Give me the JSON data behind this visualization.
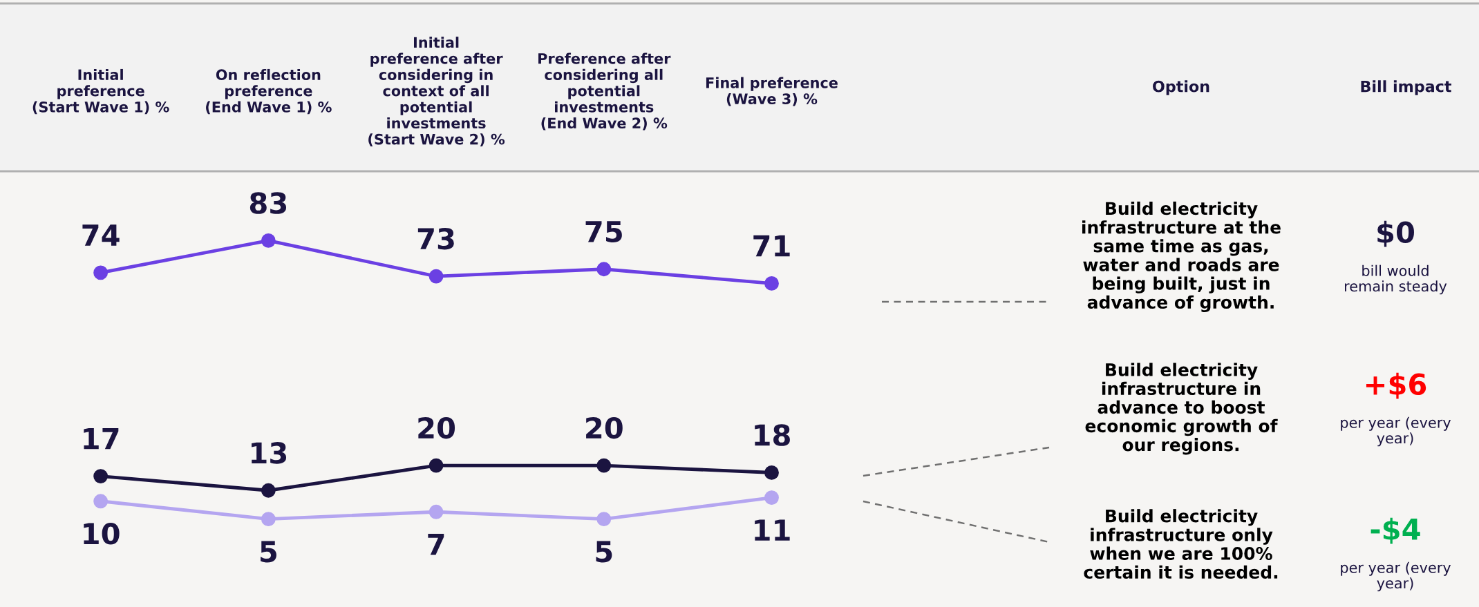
{
  "chart_data": {
    "type": "line",
    "categories": [
      "Initial\npreference\n(Start Wave 1) %",
      "On reflection\npreference\n(End Wave 1) %",
      "Initial\npreference after\nconsidering in\ncontext of all\npotential\ninvestments\n(Start Wave 2) %",
      "Preference after\nconsidering all\npotential\ninvestments\n(End Wave 2) %",
      "Final preference\n(Wave 3) %"
    ],
    "series": [
      {
        "color": "#6b40e3",
        "values": [
          74,
          83,
          73,
          75,
          71
        ]
      },
      {
        "color": "#1b1440",
        "values": [
          17,
          13,
          20,
          20,
          18
        ]
      },
      {
        "color": "#b4a5f0",
        "values": [
          10,
          5,
          7,
          5,
          11
        ]
      }
    ],
    "data_labels": true,
    "marker": "circle",
    "line_style": "solid",
    "grid": false,
    "legend": false,
    "annotations": [
      "Option",
      "Bill impact",
      "Build electricity\ninfrastructure at the\nsame time as gas,\nwater and roads are\nbeing built, just in\nadvance of growth.",
      "Build electricity\ninfrastructure in\nadvance to boost\neconomic growth of\nour regions.",
      "Build electricity\ninfrastructure only\nwhen we are 100%\ncertain it is needed.",
      "$0",
      "bill would\nremain steady",
      "+$6",
      "per year (every\nyear)",
      "-$4",
      "per year (every\nyear)"
    ]
  }
}
